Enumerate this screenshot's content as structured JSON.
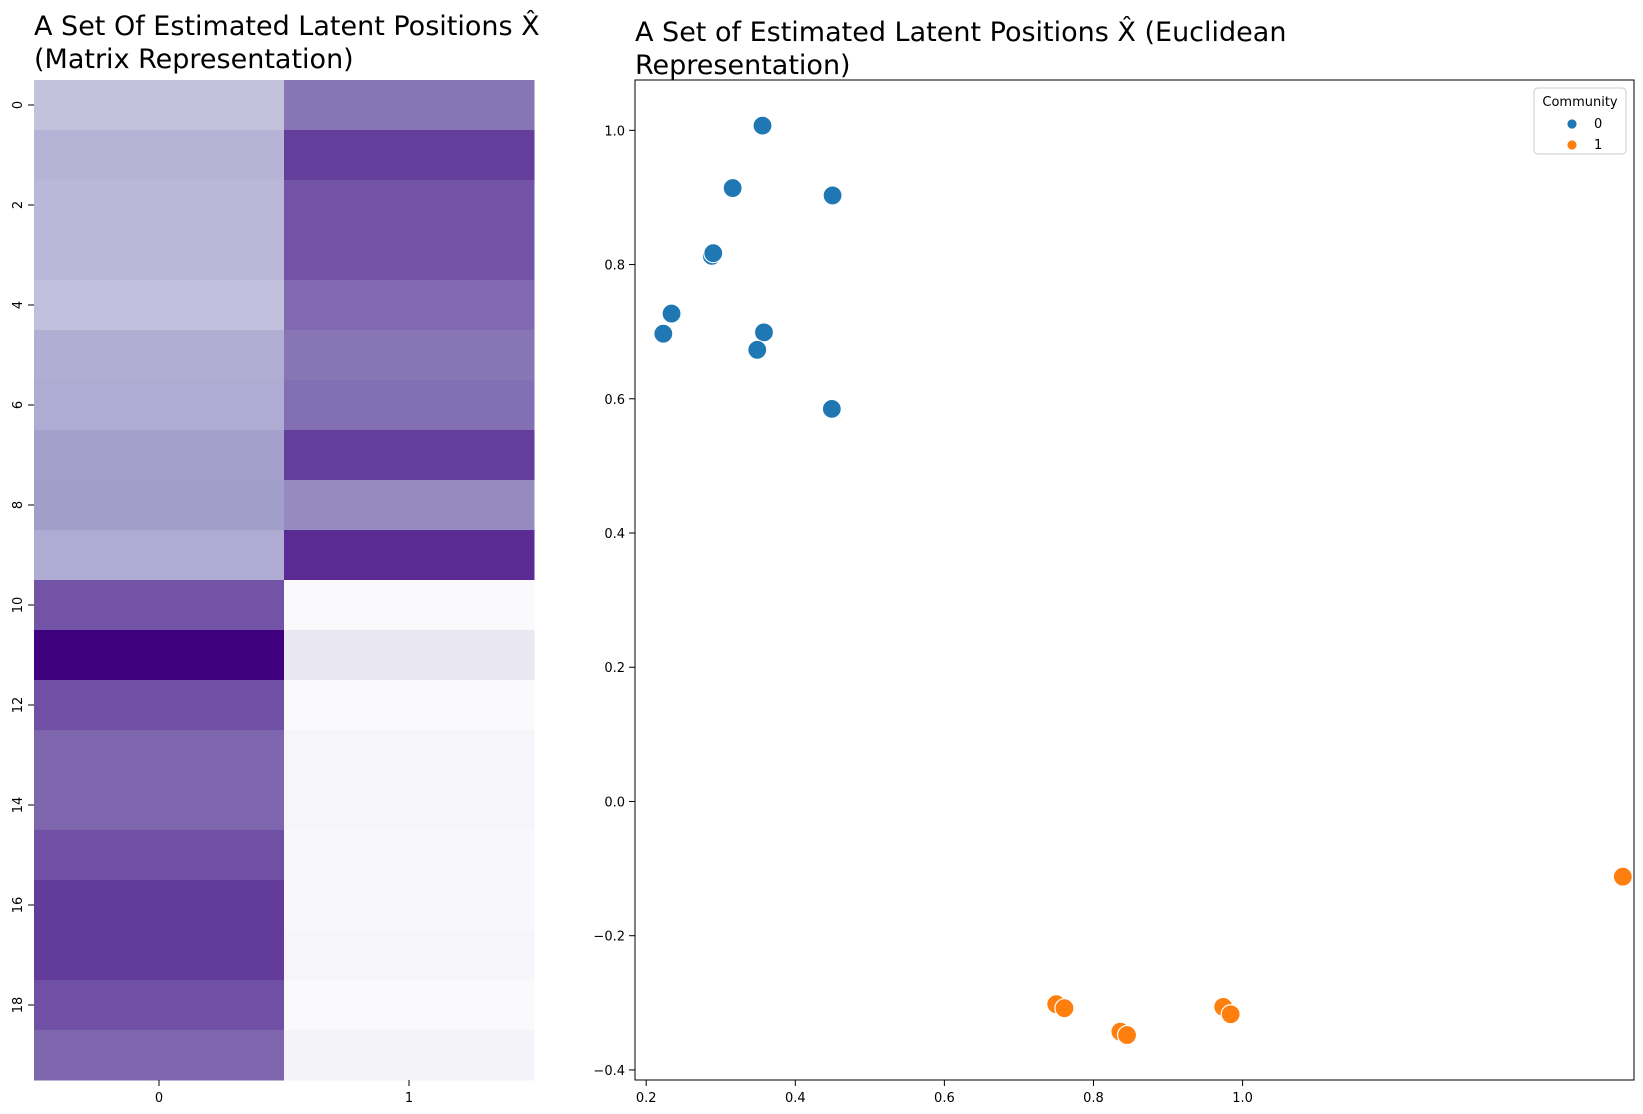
{
  "chart_data": [
    {
      "type": "heatmap",
      "title_lines": [
        "A Set Of Estimated Latent Positions X̂",
        "(Matrix Representation)"
      ],
      "x_tick_labels": [
        "0",
        "1"
      ],
      "y_tick_labels": [
        "0",
        "2",
        "4",
        "6",
        "8",
        "10",
        "12",
        "14",
        "16",
        "18"
      ],
      "y_tick_rows": [
        0,
        2,
        4,
        6,
        8,
        10,
        12,
        14,
        16,
        18
      ],
      "colormap": "Purples",
      "colors_hex": {
        "low": "#fcfbfd",
        "high": "#3f007d"
      },
      "colorbar": false,
      "rows": 20,
      "columns": 2,
      "values": [
        [
          0.3,
          0.62
        ],
        [
          0.37,
          0.8
        ],
        [
          0.35,
          0.73
        ],
        [
          0.35,
          0.73
        ],
        [
          0.31,
          0.66
        ],
        [
          0.4,
          0.62
        ],
        [
          0.41,
          0.64
        ],
        [
          0.47,
          0.8
        ],
        [
          0.48,
          0.55
        ],
        [
          0.41,
          0.86
        ],
        [
          0.73,
          0.01
        ],
        [
          1.0,
          0.1
        ],
        [
          0.74,
          0.01
        ],
        [
          0.67,
          0.03
        ],
        [
          0.67,
          0.03
        ],
        [
          0.74,
          0.02
        ],
        [
          0.81,
          0.02
        ],
        [
          0.81,
          0.03
        ],
        [
          0.74,
          0.01
        ],
        [
          0.67,
          0.04
        ]
      ]
    },
    {
      "type": "scatter",
      "title_lines": [
        "A Set of Estimated Latent Positions X̂ (Euclidean",
        "Representation)"
      ],
      "xlim": [
        0.185,
        1.525
      ],
      "ylim": [
        -0.415,
        1.075
      ],
      "x_ticks": [
        0.2,
        0.4,
        0.6,
        0.8,
        1.0
      ],
      "x_tick_labels": [
        "0.2",
        "0.4",
        "0.6",
        "0.8",
        "1.0"
      ],
      "y_ticks": [
        -0.4,
        -0.2,
        0.0,
        0.2,
        0.4,
        0.6,
        0.8,
        1.0
      ],
      "y_tick_labels": [
        "−0.4",
        "−0.2",
        "0.0",
        "0.2",
        "0.4",
        "0.6",
        "0.8",
        "1.0"
      ],
      "grid": false,
      "legend": {
        "title": "Community",
        "placement": "top-right"
      },
      "series": [
        {
          "name": "0",
          "color": "#1f77b4",
          "x": [
            0.356,
            0.316,
            0.45,
            0.288,
            0.29,
            0.234,
            0.223,
            0.358,
            0.349,
            0.449
          ],
          "y": [
            1.007,
            0.914,
            0.903,
            0.813,
            0.817,
            0.727,
            0.697,
            0.699,
            0.673,
            0.585
          ]
        },
        {
          "name": "1",
          "color": "#ff7f0e",
          "x": [
            1.51,
            0.75,
            0.761,
            0.836,
            0.845,
            0.974,
            0.984
          ],
          "y": [
            -0.112,
            -0.302,
            -0.308,
            -0.343,
            -0.348,
            -0.306,
            -0.317
          ]
        }
      ]
    }
  ]
}
